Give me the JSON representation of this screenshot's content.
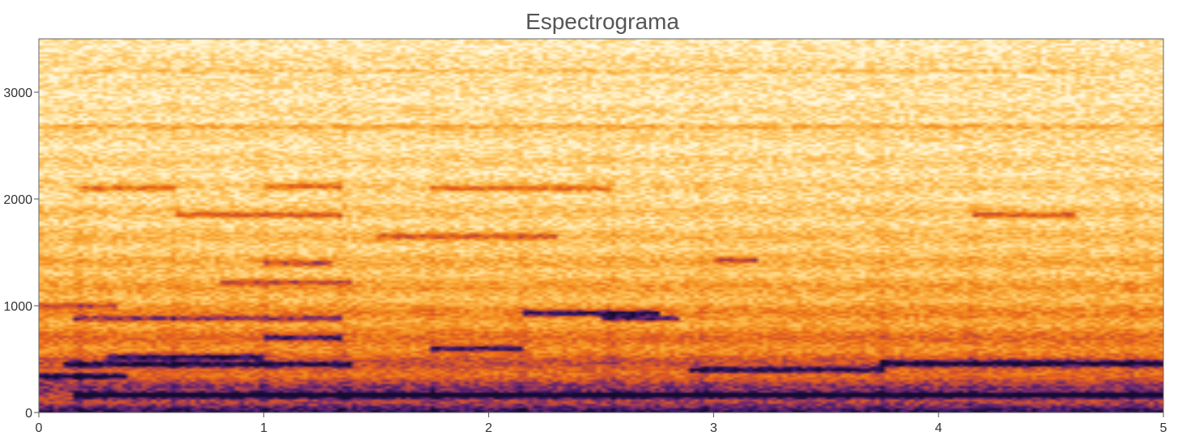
{
  "chart_data": {
    "type": "heatmap",
    "title": "Espectrograma",
    "xlabel": "",
    "ylabel": "",
    "xlim": [
      0,
      5
    ],
    "ylim": [
      0,
      3500
    ],
    "x_ticks": [
      0,
      1,
      2,
      3,
      4,
      5
    ],
    "y_ticks": [
      0,
      1000,
      2000,
      3000
    ],
    "colormap": [
      "#ffffff",
      "#fff2c8",
      "#ffd27a",
      "#fbb040",
      "#f28c1e",
      "#e8621b",
      "#c24a3a",
      "#7a2a6e",
      "#3b1a6e",
      "#160a30"
    ],
    "harmonic_bands": [
      {
        "freq": 160,
        "t_start": 0.15,
        "t_end": 5.0,
        "intensity": 0.85
      },
      {
        "freq": 340,
        "t_start": 0.0,
        "t_end": 0.4,
        "intensity": 0.95
      },
      {
        "freq": 450,
        "t_start": 0.1,
        "t_end": 1.4,
        "intensity": 0.7
      },
      {
        "freq": 520,
        "t_start": 0.3,
        "t_end": 1.0,
        "intensity": 0.75
      },
      {
        "freq": 600,
        "t_start": 1.75,
        "t_end": 2.15,
        "intensity": 0.92
      },
      {
        "freq": 700,
        "t_start": 1.0,
        "t_end": 1.35,
        "intensity": 0.7
      },
      {
        "freq": 880,
        "t_start": 0.15,
        "t_end": 1.35,
        "intensity": 0.7
      },
      {
        "freq": 930,
        "t_start": 2.15,
        "t_end": 2.75,
        "intensity": 0.9
      },
      {
        "freq": 880,
        "t_start": 2.5,
        "t_end": 2.85,
        "intensity": 0.85
      },
      {
        "freq": 400,
        "t_start": 2.9,
        "t_end": 3.75,
        "intensity": 0.8
      },
      {
        "freq": 460,
        "t_start": 3.75,
        "t_end": 5.0,
        "intensity": 0.82
      },
      {
        "freq": 1000,
        "t_start": 0.0,
        "t_end": 0.35,
        "intensity": 0.55
      },
      {
        "freq": 1220,
        "t_start": 0.8,
        "t_end": 1.4,
        "intensity": 0.6
      },
      {
        "freq": 1400,
        "t_start": 1.0,
        "t_end": 1.3,
        "intensity": 0.6
      },
      {
        "freq": 1430,
        "t_start": 3.0,
        "t_end": 3.2,
        "intensity": 0.6
      },
      {
        "freq": 1650,
        "t_start": 1.5,
        "t_end": 2.3,
        "intensity": 0.55
      },
      {
        "freq": 1850,
        "t_start": 0.6,
        "t_end": 1.35,
        "intensity": 0.6
      },
      {
        "freq": 1850,
        "t_start": 4.15,
        "t_end": 4.6,
        "intensity": 0.6
      },
      {
        "freq": 2100,
        "t_start": 0.2,
        "t_end": 0.6,
        "intensity": 0.55
      },
      {
        "freq": 2100,
        "t_start": 1.75,
        "t_end": 2.55,
        "intensity": 0.55
      },
      {
        "freq": 2120,
        "t_start": 1.0,
        "t_end": 1.35,
        "intensity": 0.55
      },
      {
        "freq": 2680,
        "t_start": 0.0,
        "t_end": 5.0,
        "intensity": 0.35
      },
      {
        "freq": 3200,
        "t_start": 0.15,
        "t_end": 4.8,
        "intensity": 0.25
      }
    ]
  }
}
